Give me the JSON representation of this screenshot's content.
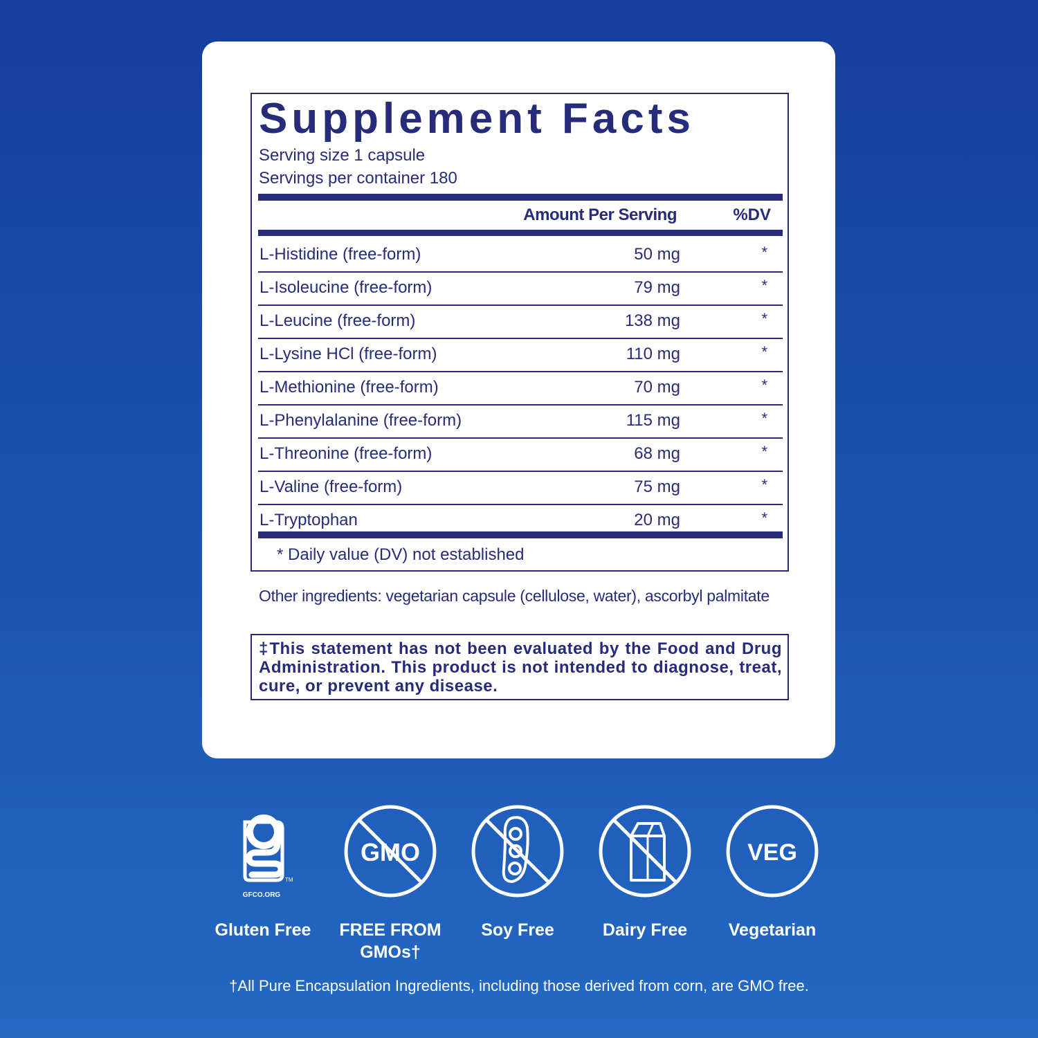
{
  "facts": {
    "title": "Supplement Facts",
    "serving_size": "Serving size  1 capsule",
    "servings_per_container": "Servings per container  180",
    "col_amount": "Amount Per Serving",
    "col_dv": "%DV",
    "rows": [
      {
        "name": "L-Histidine (free-form)",
        "amount": "50 mg",
        "dv": "*"
      },
      {
        "name": "L-Isoleucine  (free-form)",
        "amount": "79 mg",
        "dv": "*"
      },
      {
        "name": "L-Leucine (free-form)",
        "amount": "138 mg",
        "dv": "*"
      },
      {
        "name": "L-Lysine HCl (free-form)",
        "amount": "110 mg",
        "dv": "*"
      },
      {
        "name": "L-Methionine (free-form)",
        "amount": "70 mg",
        "dv": "*"
      },
      {
        "name": "L-Phenylalanine (free-form)",
        "amount": "115 mg",
        "dv": "*"
      },
      {
        "name": "L-Threonine (free-form)",
        "amount": "68 mg",
        "dv": "*"
      },
      {
        "name": "L-Valine (free-form)",
        "amount": "75 mg",
        "dv": "*"
      },
      {
        "name": "L-Tryptophan",
        "amount": "20 mg",
        "dv": "*"
      }
    ],
    "dv_note": "*  Daily value (DV) not established"
  },
  "other_ingredients": "Other ingredients: vegetarian capsule (cellulose, water), ascorbyl palmitate",
  "disclaimer": "‡This statement has not been evaluated by the Food and Drug Administration. This product is not intended to diagnose, treat, cure, or prevent any disease.",
  "badges": [
    {
      "icon": "gluten-free-gfco-icon",
      "label": "Gluten Free",
      "icon_text": "GFCO.ORG"
    },
    {
      "icon": "no-gmo-icon",
      "label": "FREE FROM GMOs†",
      "icon_text": "GMO"
    },
    {
      "icon": "no-soy-icon",
      "label": "Soy Free"
    },
    {
      "icon": "no-dairy-icon",
      "label": "Dairy Free"
    },
    {
      "icon": "veg-icon",
      "label": "Vegetarian",
      "icon_text": "VEG"
    }
  ],
  "footnote": "†All Pure Encapsulation Ingredients, including those derived from corn, are GMO free.",
  "colors": {
    "navy": "#262b7a",
    "background": "#1c54b0",
    "card": "#ffffff"
  }
}
